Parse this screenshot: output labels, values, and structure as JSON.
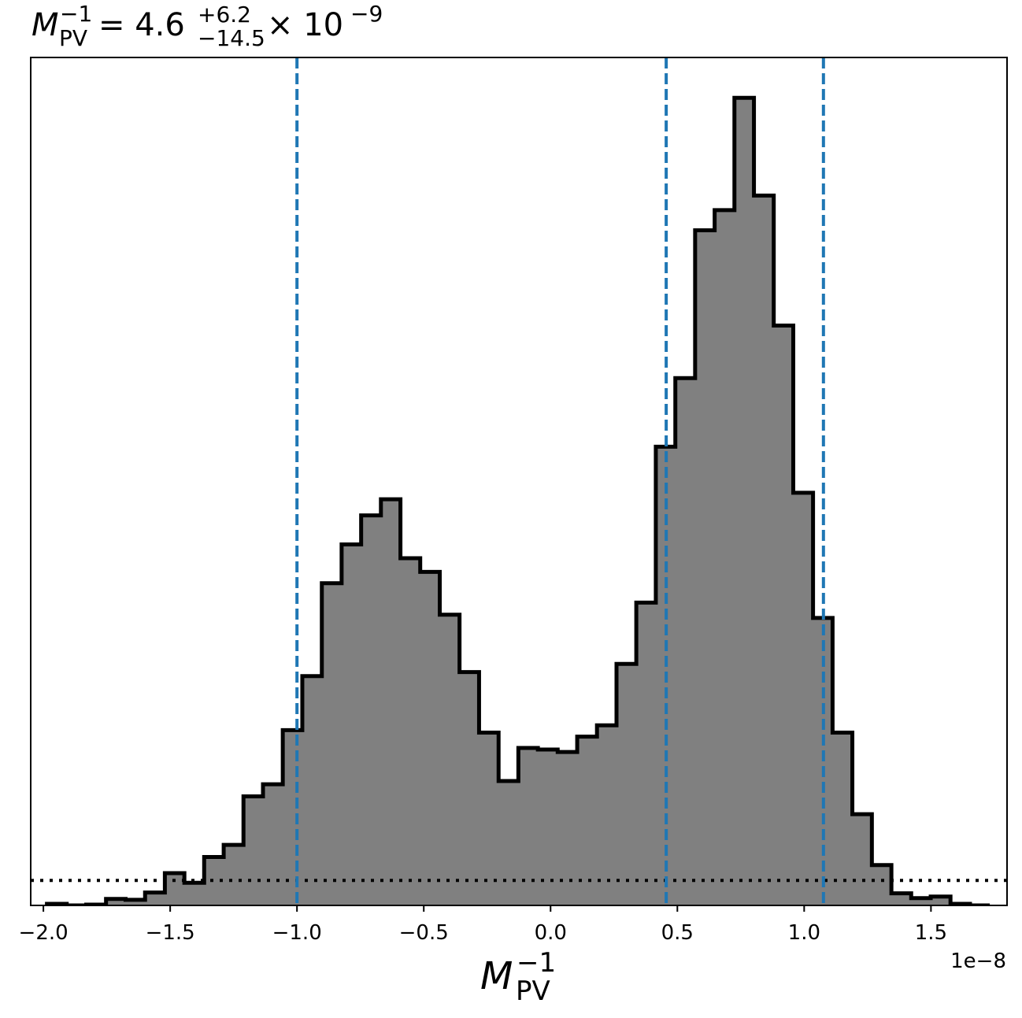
{
  "chart_data": {
    "type": "histogram",
    "title": {
      "symbol": "M",
      "sub": "PV",
      "sup": "−1",
      "eq": " = 4.6",
      "err_plus": "+6.2",
      "err_minus": "−14.5",
      "times": " × 10",
      "exp": "−9"
    },
    "xlabel": {
      "symbol": "M",
      "sub": "PV",
      "sup": "−1"
    },
    "offset_text": "1e−8",
    "xlim": [
      -2.05,
      1.8
    ],
    "xticks": [
      {
        "value": -2.0,
        "label": "−2.0"
      },
      {
        "value": -1.5,
        "label": "−1.5"
      },
      {
        "value": -1.0,
        "label": "−1.0"
      },
      {
        "value": -0.5,
        "label": "−0.5"
      },
      {
        "value": 0.0,
        "label": "0.0"
      },
      {
        "value": 0.5,
        "label": "0.5"
      },
      {
        "value": 1.0,
        "label": "1.0"
      },
      {
        "value": 1.5,
        "label": "1.5"
      }
    ],
    "ylim": [
      0,
      1.05
    ],
    "bin_edges": [
      -1.986,
      -1.908,
      -1.831,
      -1.753,
      -1.676,
      -1.599,
      -1.521,
      -1.444,
      -1.366,
      -1.289,
      -1.211,
      -1.134,
      -1.056,
      -0.979,
      -0.902,
      -0.824,
      -0.747,
      -0.669,
      -0.592,
      -0.514,
      -0.437,
      -0.359,
      -0.282,
      -0.205,
      -0.127,
      -0.05,
      0.028,
      0.105,
      0.183,
      0.26,
      0.338,
      0.415,
      0.492,
      0.57,
      0.647,
      0.725,
      0.802,
      0.88,
      0.957,
      1.035,
      1.112,
      1.19,
      1.267,
      1.344,
      1.422,
      1.499,
      1.577,
      1.654,
      1.732
    ],
    "counts": [
      0.002,
      0.0,
      0.001,
      0.008,
      0.007,
      0.016,
      0.04,
      0.028,
      0.06,
      0.075,
      0.135,
      0.15,
      0.217,
      0.284,
      0.399,
      0.447,
      0.483,
      0.503,
      0.43,
      0.413,
      0.36,
      0.289,
      0.214,
      0.154,
      0.195,
      0.193,
      0.19,
      0.209,
      0.223,
      0.299,
      0.375,
      0.568,
      0.653,
      0.836,
      0.861,
      1.0,
      0.879,
      0.718,
      0.511,
      0.356,
      0.214,
      0.113,
      0.05,
      0.015,
      0.009,
      0.011,
      0.002,
      0.0
    ],
    "vlines": [
      {
        "x": -1.0,
        "style": "dashed",
        "color": "#1f77b4"
      },
      {
        "x": 0.456,
        "style": "dashed",
        "color": "#1f77b4"
      },
      {
        "x": 1.076,
        "style": "dashed",
        "color": "#1f77b4"
      }
    ],
    "hline": {
      "y": 0.031,
      "style": "dotted",
      "color": "#000000"
    },
    "fill_color": "#808080",
    "edge_color": "#000000"
  }
}
